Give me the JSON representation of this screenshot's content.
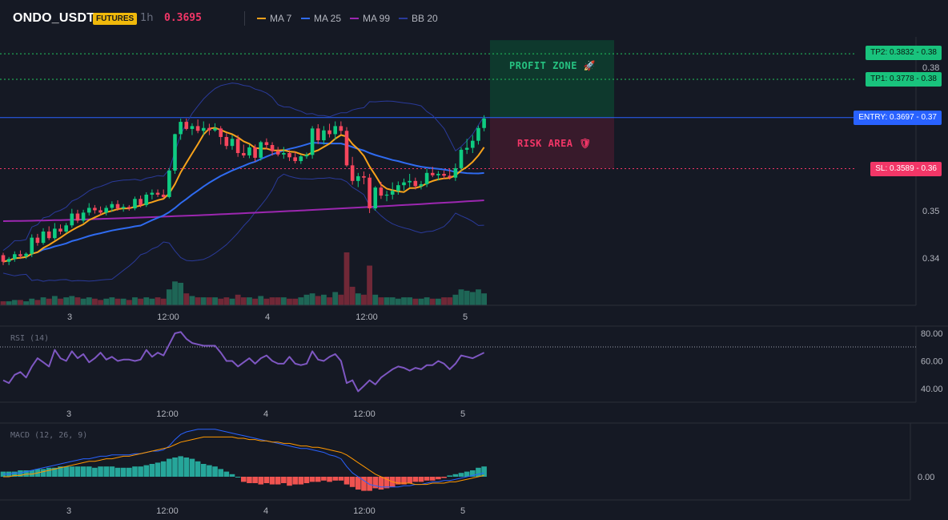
{
  "header": {
    "symbol": "ONDO_USDT",
    "badge": "FUTURES",
    "timeframe": "1h",
    "price": "0.3695",
    "legend": [
      {
        "label": "MA 7",
        "color": "#f7a21b"
      },
      {
        "label": "MA 25",
        "color": "#2f6bf0"
      },
      {
        "label": "MA 99",
        "color": "#9c27b0"
      },
      {
        "label": "BB 20",
        "color": "#2a3a9a"
      }
    ]
  },
  "levels": {
    "tp2": {
      "label": "TP2: 0.3832",
      "axis": "0.38",
      "color": "#22c55e"
    },
    "tp1": {
      "label": "TP1: 0.3778",
      "axis": "0.38",
      "color": "#22c55e"
    },
    "entry": {
      "label": "ENTRY: 0.3697",
      "axis": "0.37",
      "color": "#2962ff"
    },
    "sl": {
      "label": "SL: 0.3589",
      "axis": "0.36",
      "color": "#f23667"
    }
  },
  "zones": {
    "profit": {
      "label": "PROFIT ZONE 🚀",
      "color": "#0e3b2e"
    },
    "risk": {
      "label": "RISK AREA 🛡",
      "color": "#3a1a2c"
    }
  },
  "chart_data": [
    {
      "type": "candlestick",
      "pane": "price",
      "x_ticks": [
        "3",
        "12:00",
        "4",
        "12:00",
        "5"
      ],
      "y_ticks": [
        "0.38",
        "0.35",
        "0.34"
      ],
      "levels": [
        0.3832,
        0.3778,
        0.3697,
        0.3589
      ],
      "overlays": [
        "MA 7",
        "MA 25",
        "MA 99",
        "BB 20"
      ],
      "ohlc": [
        [
          0.3406,
          0.3411,
          0.3385,
          0.3392
        ],
        [
          0.3392,
          0.3402,
          0.3385,
          0.3398
        ],
        [
          0.3398,
          0.3414,
          0.3392,
          0.3408
        ],
        [
          0.3408,
          0.3416,
          0.3398,
          0.3404
        ],
        [
          0.3404,
          0.3412,
          0.3398,
          0.3409
        ],
        [
          0.3409,
          0.345,
          0.3402,
          0.3443
        ],
        [
          0.3443,
          0.3451,
          0.3426,
          0.3432
        ],
        [
          0.3432,
          0.3463,
          0.3428,
          0.3456
        ],
        [
          0.3456,
          0.3467,
          0.3438,
          0.3442
        ],
        [
          0.3442,
          0.3474,
          0.3438,
          0.3462
        ],
        [
          0.3462,
          0.3471,
          0.345,
          0.3456
        ],
        [
          0.3456,
          0.3474,
          0.3452,
          0.3469
        ],
        [
          0.3469,
          0.3504,
          0.3464,
          0.3494
        ],
        [
          0.3494,
          0.3502,
          0.3474,
          0.3479
        ],
        [
          0.3479,
          0.3502,
          0.3474,
          0.3496
        ],
        [
          0.3496,
          0.3516,
          0.349,
          0.3506
        ],
        [
          0.3506,
          0.3512,
          0.3494,
          0.3501
        ],
        [
          0.3501,
          0.3509,
          0.3491,
          0.3496
        ],
        [
          0.3496,
          0.3511,
          0.349,
          0.3506
        ],
        [
          0.3506,
          0.352,
          0.3498,
          0.3514
        ],
        [
          0.3514,
          0.3522,
          0.35,
          0.3505
        ],
        [
          0.3505,
          0.3514,
          0.3498,
          0.3508
        ],
        [
          0.3508,
          0.3512,
          0.35,
          0.3505
        ],
        [
          0.3505,
          0.353,
          0.3501,
          0.3525
        ],
        [
          0.3525,
          0.3532,
          0.3507,
          0.3512
        ],
        [
          0.3512,
          0.3539,
          0.3508,
          0.3534
        ],
        [
          0.3534,
          0.3545,
          0.3524,
          0.3538
        ],
        [
          0.3538,
          0.3545,
          0.3529,
          0.3534
        ],
        [
          0.3534,
          0.3545,
          0.3526,
          0.3529
        ],
        [
          0.3529,
          0.359,
          0.3526,
          0.3585
        ],
        [
          0.3585,
          0.3663,
          0.3578,
          0.3662
        ],
        [
          0.3662,
          0.3695,
          0.365,
          0.3688
        ],
        [
          0.3688,
          0.3695,
          0.367,
          0.3673
        ],
        [
          0.3673,
          0.3685,
          0.366,
          0.3679
        ],
        [
          0.3679,
          0.3693,
          0.3664,
          0.3669
        ],
        [
          0.3669,
          0.3689,
          0.366,
          0.3675
        ],
        [
          0.3675,
          0.3684,
          0.366,
          0.367
        ],
        [
          0.367,
          0.3685,
          0.3667,
          0.3674
        ],
        [
          0.3674,
          0.3679,
          0.364,
          0.3656
        ],
        [
          0.3656,
          0.3664,
          0.363,
          0.3637
        ],
        [
          0.3637,
          0.366,
          0.3629,
          0.3652
        ],
        [
          0.3652,
          0.366,
          0.3614,
          0.3622
        ],
        [
          0.3622,
          0.364,
          0.3612,
          0.3617
        ],
        [
          0.3617,
          0.364,
          0.3611,
          0.3634
        ],
        [
          0.3634,
          0.364,
          0.3604,
          0.3612
        ],
        [
          0.3612,
          0.3648,
          0.3606,
          0.3645
        ],
        [
          0.3645,
          0.3653,
          0.363,
          0.3639
        ],
        [
          0.3639,
          0.3645,
          0.3617,
          0.3626
        ],
        [
          0.3626,
          0.3635,
          0.3615,
          0.3619
        ],
        [
          0.3619,
          0.3635,
          0.361,
          0.3622
        ],
        [
          0.3622,
          0.3628,
          0.3605,
          0.3613
        ],
        [
          0.3613,
          0.3625,
          0.36,
          0.3605
        ],
        [
          0.3605,
          0.3618,
          0.3599,
          0.3615
        ],
        [
          0.3615,
          0.3623,
          0.361,
          0.3618
        ],
        [
          0.3618,
          0.3679,
          0.361,
          0.3674
        ],
        [
          0.3674,
          0.3683,
          0.3641,
          0.3649
        ],
        [
          0.3649,
          0.3679,
          0.364,
          0.367
        ],
        [
          0.367,
          0.3684,
          0.3655,
          0.3662
        ],
        [
          0.3662,
          0.3689,
          0.365,
          0.3679
        ],
        [
          0.3679,
          0.3689,
          0.3662,
          0.3669
        ],
        [
          0.3669,
          0.3677,
          0.3593,
          0.3596
        ],
        [
          0.3596,
          0.3614,
          0.3555,
          0.3563
        ],
        [
          0.3563,
          0.358,
          0.355,
          0.3573
        ],
        [
          0.3573,
          0.3583,
          0.3556,
          0.357
        ],
        [
          0.357,
          0.3578,
          0.3495,
          0.3505
        ],
        [
          0.3505,
          0.3552,
          0.35,
          0.3549
        ],
        [
          0.3549,
          0.3561,
          0.3525,
          0.3532
        ],
        [
          0.3532,
          0.3542,
          0.352,
          0.3534
        ],
        [
          0.3534,
          0.356,
          0.3524,
          0.3542
        ],
        [
          0.3542,
          0.3562,
          0.3534,
          0.3554
        ],
        [
          0.3554,
          0.3568,
          0.3543,
          0.356
        ],
        [
          0.356,
          0.3578,
          0.355,
          0.3563
        ],
        [
          0.3563,
          0.357,
          0.3545,
          0.3552
        ],
        [
          0.3552,
          0.3563,
          0.3545,
          0.3556
        ],
        [
          0.3556,
          0.3589,
          0.355,
          0.358
        ],
        [
          0.358,
          0.3593,
          0.3571,
          0.3575
        ],
        [
          0.3575,
          0.3584,
          0.3564,
          0.3578
        ],
        [
          0.3578,
          0.3585,
          0.3567,
          0.3574
        ],
        [
          0.3574,
          0.3589,
          0.3566,
          0.357
        ],
        [
          0.357,
          0.36,
          0.3563,
          0.359
        ],
        [
          0.359,
          0.3634,
          0.3585,
          0.3629
        ],
        [
          0.3629,
          0.3652,
          0.362,
          0.3633
        ],
        [
          0.3633,
          0.366,
          0.3622,
          0.3648
        ],
        [
          0.3648,
          0.368,
          0.364,
          0.3675
        ],
        [
          0.3675,
          0.3702,
          0.3668,
          0.3695
        ]
      ]
    },
    {
      "type": "bar",
      "pane": "volume",
      "values": [
        3,
        3,
        4,
        4,
        3,
        5,
        4,
        6,
        5,
        7,
        5,
        6,
        7,
        6,
        5,
        6,
        5,
        4,
        5,
        6,
        5,
        5,
        4,
        6,
        5,
        6,
        5,
        6,
        5,
        12,
        18,
        17,
        9,
        7,
        6,
        6,
        6,
        6,
        5,
        6,
        5,
        8,
        6,
        6,
        5,
        7,
        5,
        6,
        6,
        6,
        5,
        5,
        6,
        8,
        9,
        7,
        8,
        6,
        10,
        8,
        40,
        14,
        9,
        8,
        30,
        8,
        6,
        6,
        6,
        5,
        6,
        6,
        5,
        5,
        6,
        5,
        5,
        6,
        6,
        8,
        12,
        11,
        10,
        12,
        9
      ]
    },
    {
      "type": "line",
      "pane": "rsi",
      "title": "RSI (14)",
      "y_ticks": [
        "80.00",
        "60.00",
        "40.00"
      ],
      "x_ticks": [
        "3",
        "12:00",
        "4",
        "12:00",
        "5"
      ],
      "values": [
        46,
        44,
        50,
        52,
        48,
        56,
        62,
        59,
        56,
        68,
        62,
        60,
        67,
        62,
        65,
        59,
        62,
        66,
        61,
        63,
        60,
        61,
        61,
        60,
        61,
        68,
        63,
        66,
        64,
        72,
        80,
        81,
        76,
        73,
        72,
        71,
        71,
        71,
        66,
        60,
        60,
        56,
        59,
        62,
        58,
        62,
        64,
        60,
        58,
        58,
        63,
        58,
        57,
        58,
        67,
        61,
        60,
        63,
        65,
        60,
        44,
        46,
        38,
        42,
        46,
        43,
        48,
        51,
        54,
        56,
        55,
        53,
        55,
        54,
        57,
        57,
        60,
        58,
        54,
        58,
        64,
        63,
        62,
        64,
        66
      ]
    },
    {
      "type": "line",
      "pane": "macd",
      "title": "MACD (12, 26, 9)",
      "y_ticks": [
        "0.00"
      ],
      "x_ticks": [
        "3",
        "12:00",
        "4",
        "12:00",
        "5"
      ],
      "macd": [
        0.0002,
        0.0002,
        0.0003,
        0.0003,
        0.0004,
        0.0005,
        0.0006,
        0.0007,
        0.0008,
        0.0009,
        0.001,
        0.0011,
        0.0012,
        0.0013,
        0.0014,
        0.0014,
        0.0015,
        0.0016,
        0.0016,
        0.0017,
        0.0017,
        0.0017,
        0.0017,
        0.0018,
        0.0018,
        0.0019,
        0.002,
        0.002,
        0.0021,
        0.0024,
        0.0029,
        0.0033,
        0.0035,
        0.0036,
        0.0037,
        0.0037,
        0.0037,
        0.0037,
        0.0036,
        0.0035,
        0.0034,
        0.0033,
        0.0032,
        0.0031,
        0.003,
        0.0029,
        0.0028,
        0.0027,
        0.0026,
        0.0025,
        0.0024,
        0.0023,
        0.0022,
        0.0022,
        0.0021,
        0.002,
        0.0019,
        0.0017,
        0.0016,
        0.0014,
        0.0008,
        0.0003,
        0.0,
        -0.0003,
        -0.0006,
        -0.0007,
        -0.0008,
        -0.0008,
        -0.0008,
        -0.0008,
        -0.0007,
        -0.0007,
        -0.0006,
        -0.0006,
        -0.0005,
        -0.0004,
        -0.0004,
        -0.0003,
        -0.0003,
        -0.0002,
        -0.0001,
        0.0,
        0.0001,
        0.0002,
        0.0003
      ],
      "signal": [
        0.0,
        0.0,
        0.0001,
        0.0001,
        0.0002,
        0.0002,
        0.0003,
        0.0004,
        0.0005,
        0.0006,
        0.0007,
        0.0008,
        0.0009,
        0.001,
        0.0011,
        0.0012,
        0.0012,
        0.0013,
        0.0014,
        0.0014,
        0.0015,
        0.0016,
        0.0016,
        0.0017,
        0.0018,
        0.0019,
        0.002,
        0.0021,
        0.0022,
        0.0023,
        0.0025,
        0.0027,
        0.0028,
        0.0029,
        0.003,
        0.0031,
        0.0031,
        0.0031,
        0.0031,
        0.0031,
        0.0031,
        0.003,
        0.003,
        0.0029,
        0.0029,
        0.0028,
        0.0028,
        0.0027,
        0.0027,
        0.0026,
        0.0026,
        0.0025,
        0.0024,
        0.0024,
        0.0023,
        0.0023,
        0.0022,
        0.0021,
        0.002,
        0.0019,
        0.0017,
        0.0014,
        0.0011,
        0.0008,
        0.0005,
        0.0002,
        0.0,
        -0.0002,
        -0.0004,
        -0.0005,
        -0.0005,
        -0.0005,
        -0.0006,
        -0.0006,
        -0.0006,
        -0.0005,
        -0.0005,
        -0.0005,
        -0.0004,
        -0.0004,
        -0.0003,
        -0.0002,
        -0.0001,
        0.0,
        0.0001
      ],
      "histogram": [
        0.0004,
        0.0004,
        0.0004,
        0.0005,
        0.0005,
        0.0005,
        0.0006,
        0.0006,
        0.0007,
        0.0007,
        0.0008,
        0.0008,
        0.0008,
        0.0008,
        0.0008,
        0.0008,
        0.0007,
        0.0008,
        0.0008,
        0.0008,
        0.0007,
        0.0007,
        0.0007,
        0.0008,
        0.0008,
        0.0009,
        0.001,
        0.0011,
        0.0012,
        0.0014,
        0.0015,
        0.0016,
        0.0015,
        0.0014,
        0.0012,
        0.001,
        0.0009,
        0.0008,
        0.0006,
        0.0004,
        0.0002,
        0.0,
        -0.0004,
        -0.0005,
        -0.0005,
        -0.0006,
        -0.0005,
        -0.0006,
        -0.0006,
        -0.0005,
        -0.0007,
        -0.0006,
        -0.0006,
        -0.0005,
        -0.0004,
        -0.0004,
        -0.0003,
        -0.0004,
        -0.0003,
        -0.0003,
        -0.0006,
        -0.0008,
        -0.001,
        -0.0011,
        -0.0011,
        -0.0009,
        -0.001,
        -0.0009,
        -0.0008,
        -0.0006,
        -0.0006,
        -0.0005,
        -0.0004,
        -0.0004,
        -0.0003,
        -0.0003,
        -0.0002,
        -0.0001,
        0.0001,
        0.0002,
        0.0003,
        0.0004,
        0.0005,
        0.0007,
        0.0008
      ]
    }
  ]
}
